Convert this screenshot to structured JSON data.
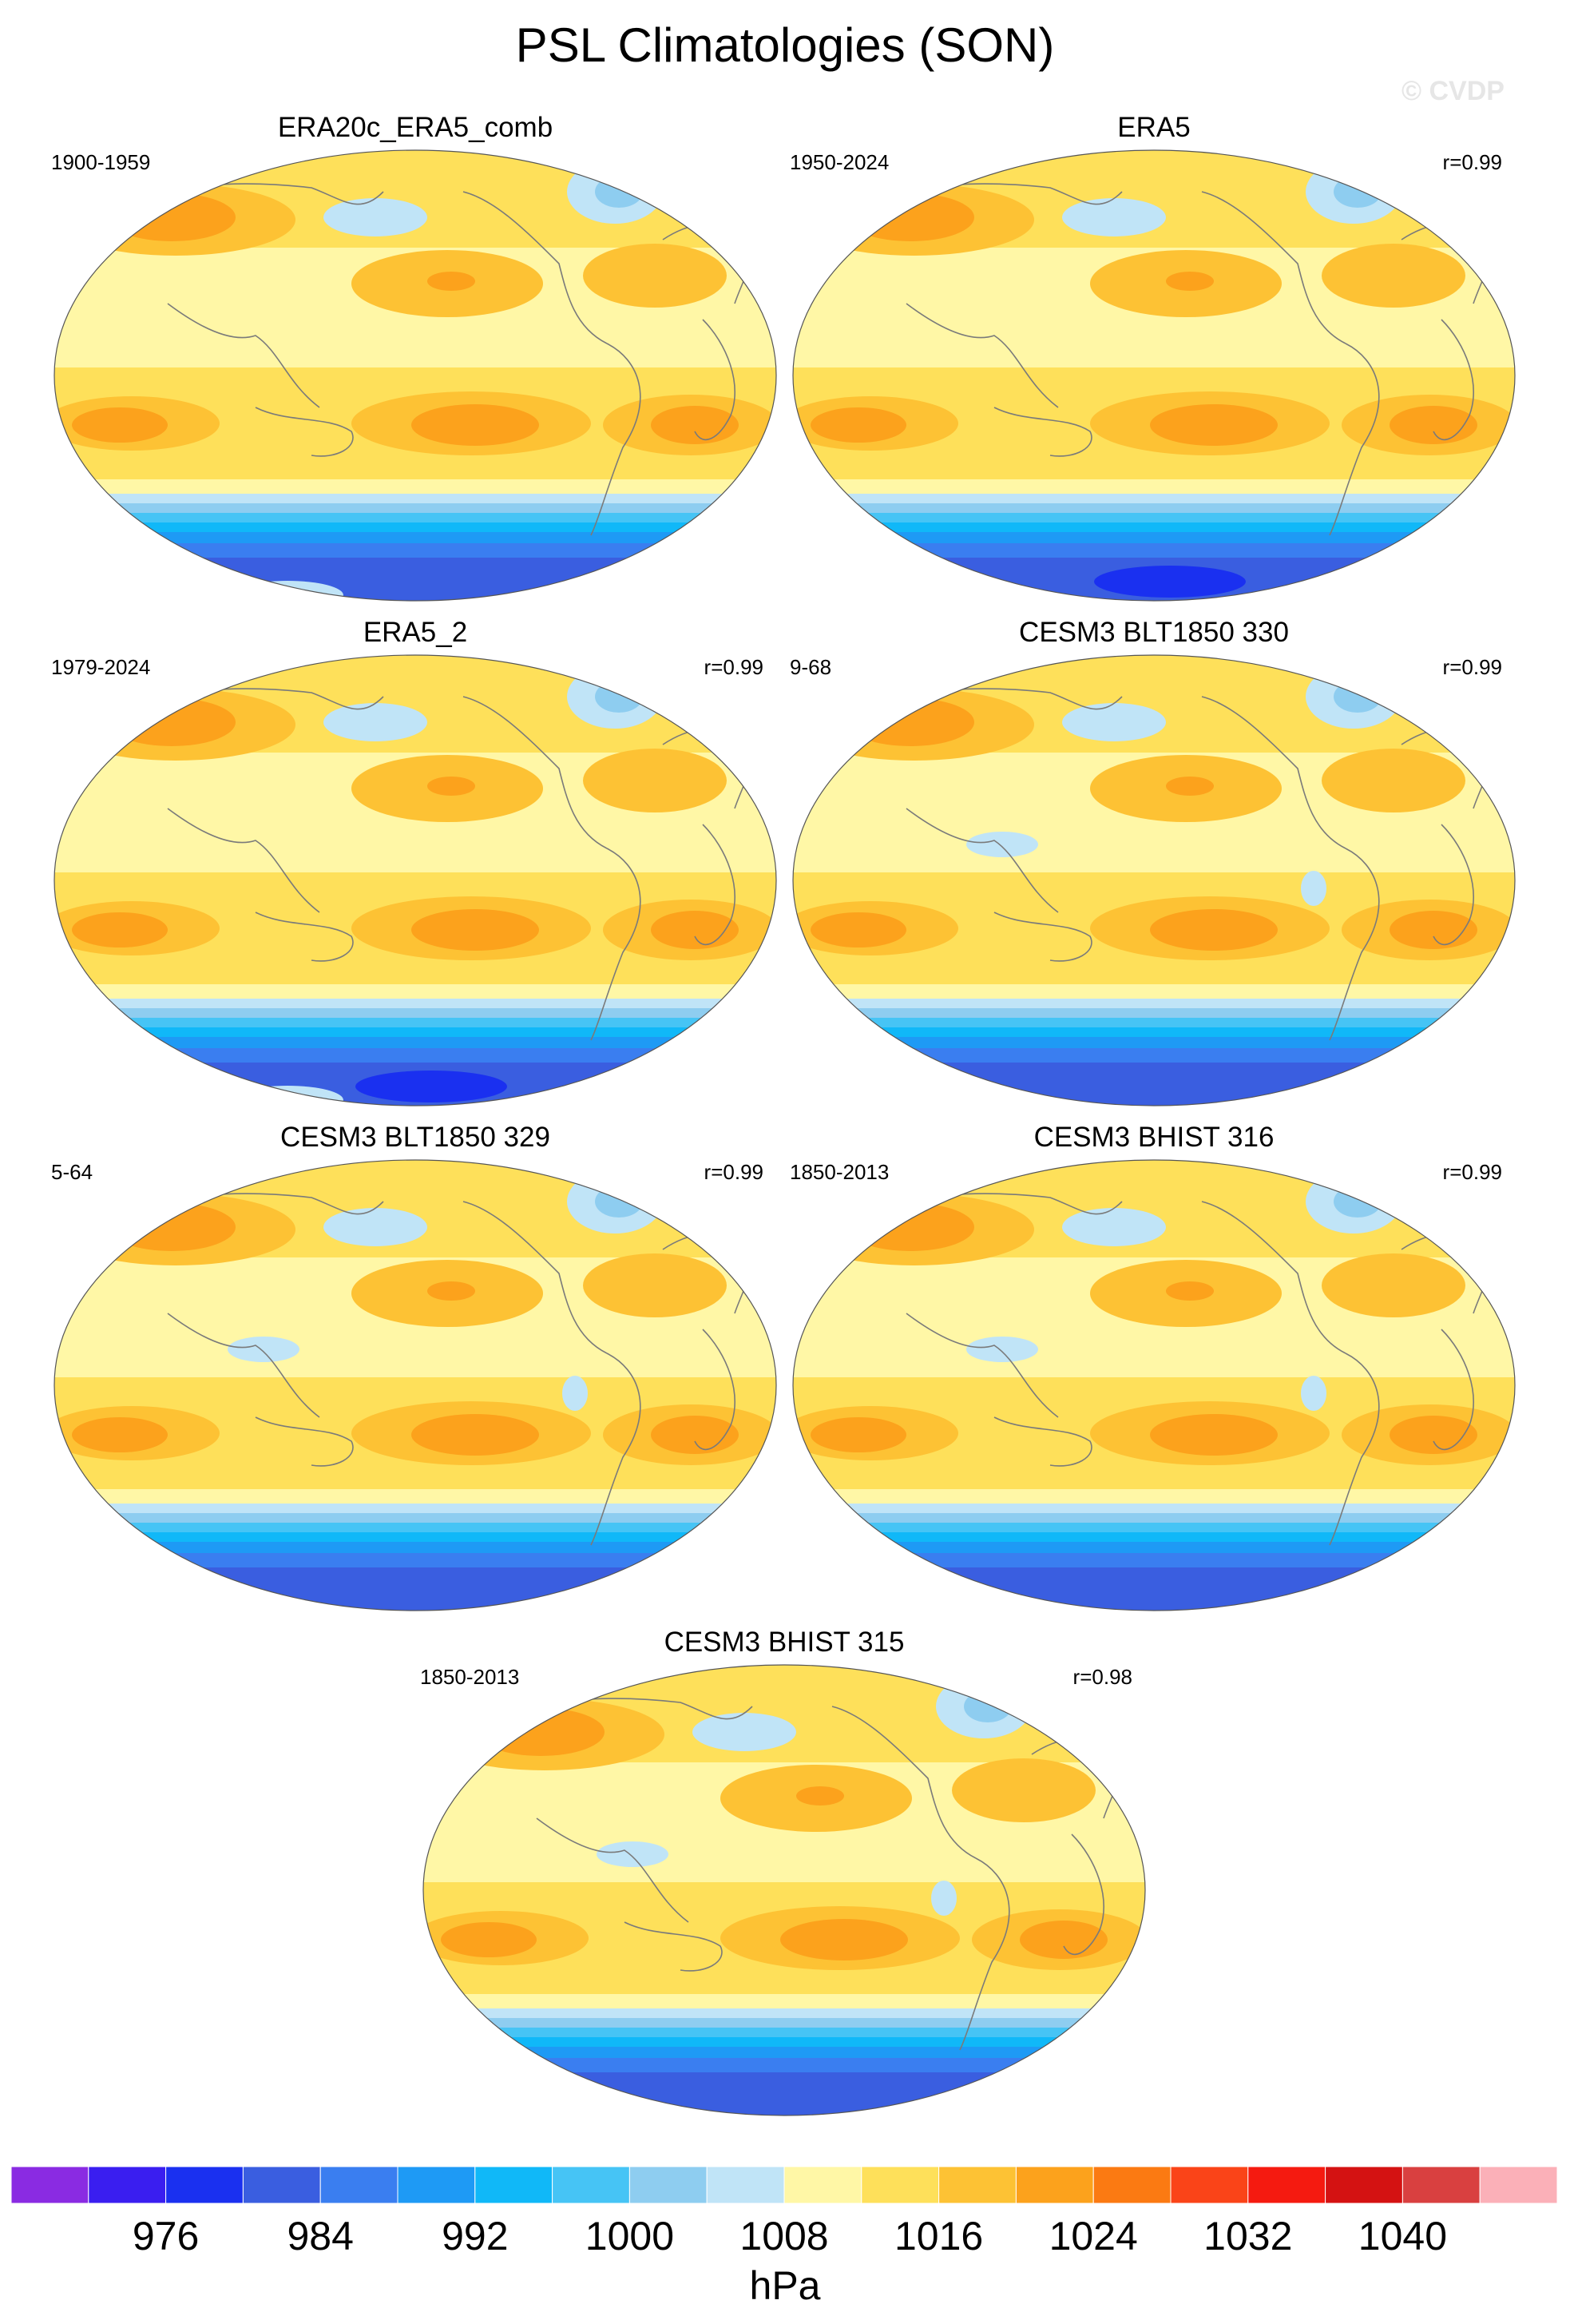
{
  "title": "PSL Climatologies (SON)",
  "watermark": "© CVDP",
  "panels": [
    {
      "title": "ERA20c_ERA5_comb",
      "left_label": "1900-1959",
      "right_label": "",
      "variant": "obs1"
    },
    {
      "title": "ERA5",
      "left_label": "1950-2024",
      "right_label": "r=0.99",
      "variant": "obs2"
    },
    {
      "title": "ERA5_2",
      "left_label": "1979-2024",
      "right_label": "r=0.99",
      "variant": "obs3"
    },
    {
      "title": "CESM3 BLT1850 330",
      "left_label": "9-68",
      "right_label": "r=0.99",
      "variant": "model"
    },
    {
      "title": "CESM3 BLT1850 329",
      "left_label": "5-64",
      "right_label": "r=0.99",
      "variant": "model"
    },
    {
      "title": "CESM3 BHIST 316",
      "left_label": "1850-2013",
      "right_label": "r=0.99",
      "variant": "model"
    },
    {
      "title": "CESM3 BHIST 315",
      "left_label": "1850-2013",
      "right_label": "r=0.98",
      "variant": "model"
    }
  ],
  "colorbar": {
    "colors": [
      "#8a2be2",
      "#3a1ef0",
      "#1a30f0",
      "#3a5ee0",
      "#3a7ef0",
      "#1e9af5",
      "#10b8f8",
      "#46c4f5",
      "#8ecdf0",
      "#c0e4f7",
      "#fff7a6",
      "#fee05a",
      "#fdc234",
      "#fca21c",
      "#fb7a12",
      "#fa4418",
      "#f51a10",
      "#d41212",
      "#d94040",
      "#fbb0b8"
    ],
    "tick_labels": [
      "976",
      "984",
      "992",
      "1000",
      "1008",
      "1016",
      "1024",
      "1032",
      "1040"
    ],
    "unit": "hPa"
  }
}
